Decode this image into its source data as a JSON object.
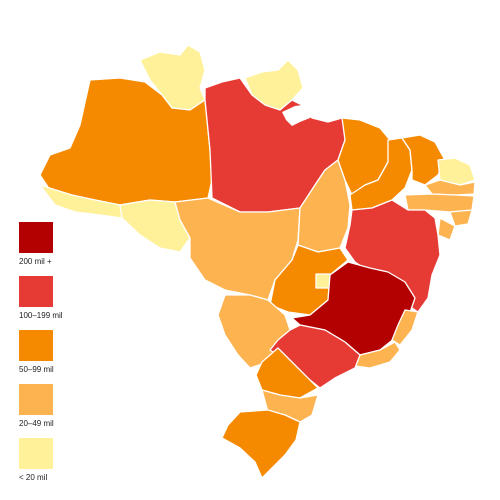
{
  "palette": {
    "c200": "#b30000",
    "c100": "#e63b35",
    "c50": "#f58a00",
    "c20": "#fdb34f",
    "c0": "#fff199"
  },
  "legend": {
    "items": [
      {
        "label": "200 mil +",
        "color": "#b30000"
      },
      {
        "label": "100–199 mil",
        "color": "#e63b35"
      },
      {
        "label": "50–99 mil",
        "color": "#f58a00"
      },
      {
        "label": "20–49 mil",
        "color": "#fdb34f"
      },
      {
        "label": "< 20 mil",
        "color": "#fff199"
      }
    ]
  }
}
